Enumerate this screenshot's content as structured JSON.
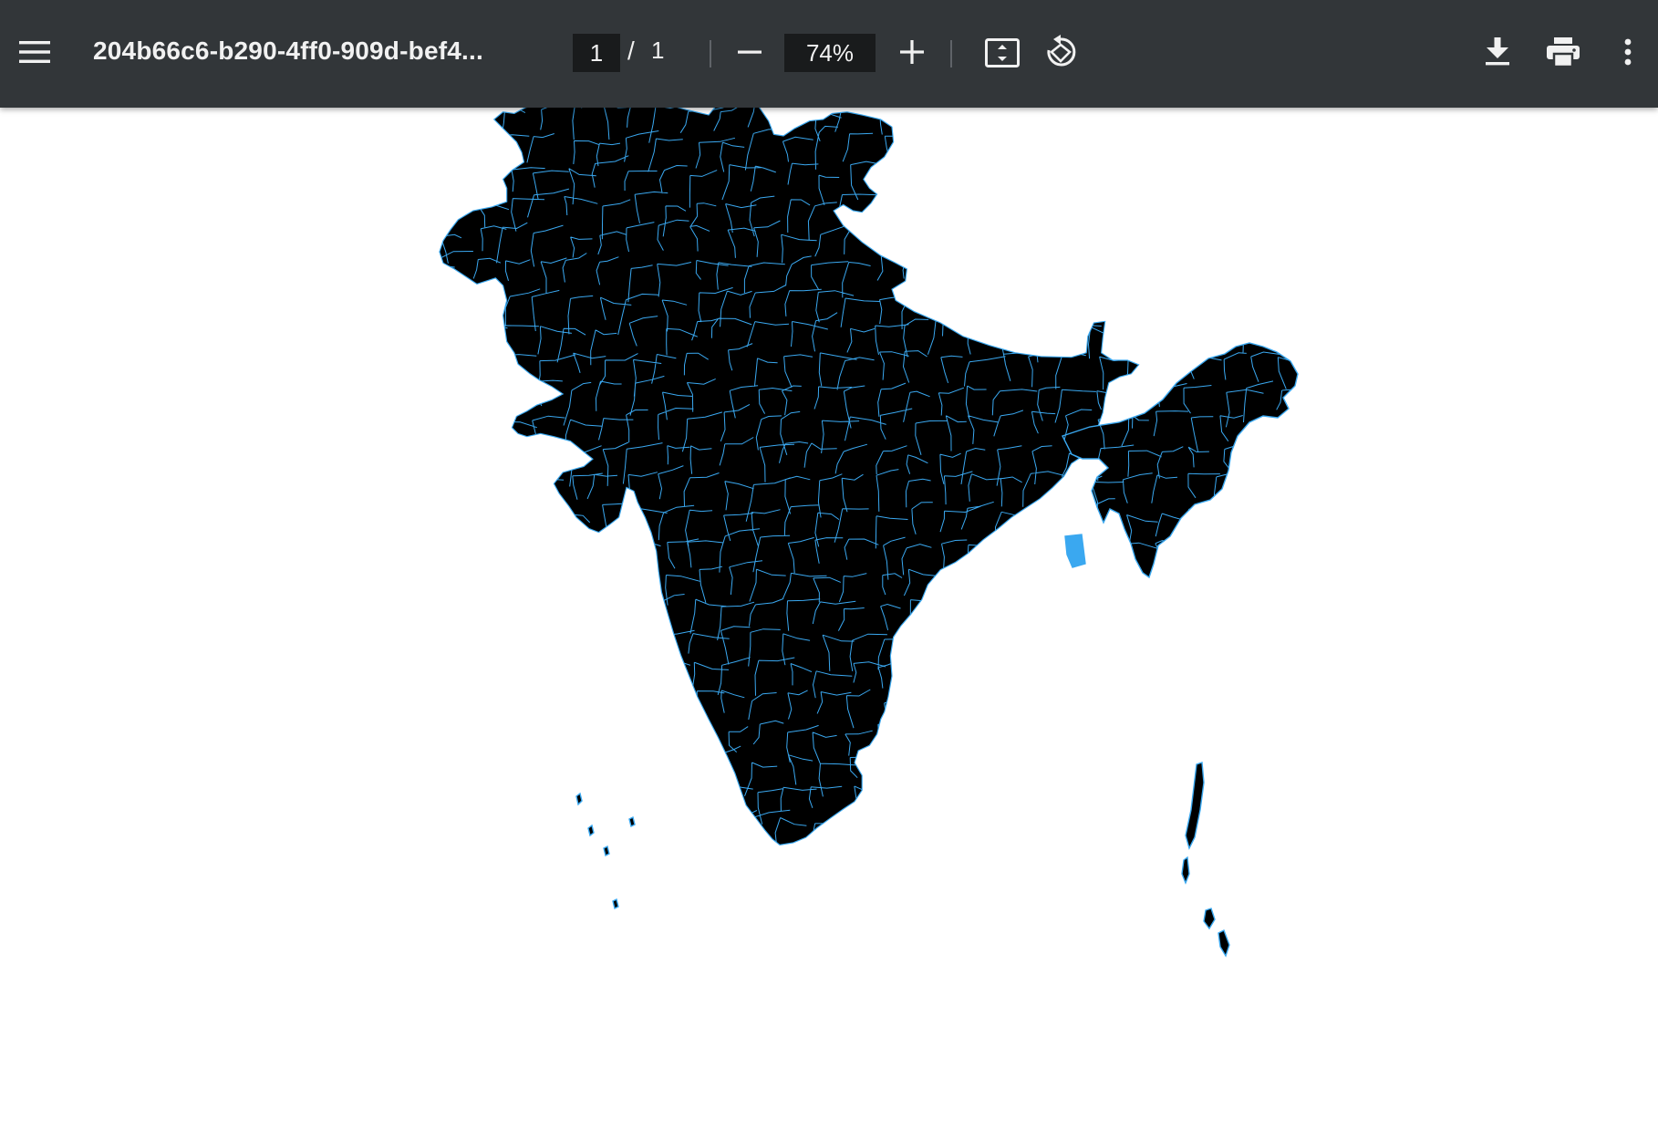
{
  "toolbar": {
    "menu_icon": "hamburger-menu-icon",
    "title": "204b66c6-b290-4ff0-909d-bef4...",
    "page_current": "1",
    "page_separator": "/",
    "page_total": "1",
    "zoom_out_icon": "minus-icon",
    "zoom_level": "74%",
    "zoom_in_icon": "plus-icon",
    "fit_icon": "fit-to-page-icon",
    "rotate_icon": "rotate-counterclockwise-icon",
    "download_icon": "download-icon",
    "print_icon": "print-icon",
    "more_icon": "more-vertical-icon",
    "background_color": "#323639",
    "text_color": "#f1f1f1"
  },
  "document": {
    "map_fill_color": "#000000",
    "boundary_color": "#3aa8f0",
    "page_background": "#ffffff"
  }
}
